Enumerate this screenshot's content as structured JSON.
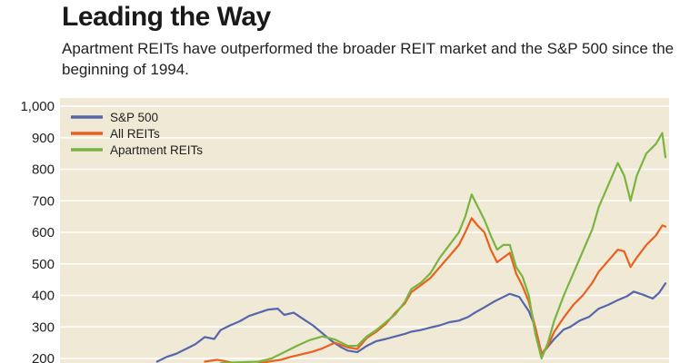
{
  "chart_data": {
    "type": "line",
    "title": "Leading the Way",
    "subtitle": "Apartment REITs have outperformed the broader REIT market and the S&P 500 since the beginning of 1994.",
    "ylim": [
      200,
      1000
    ],
    "yticks": [
      "1,000",
      "900",
      "800",
      "700",
      "600",
      "500",
      "400",
      "300",
      "200"
    ],
    "ytick_values": [
      1000,
      900,
      800,
      700,
      600,
      500,
      400,
      300,
      200
    ],
    "x": [
      1994,
      2013
    ],
    "grid": true,
    "legend_position": "top-left",
    "background_color": "#efe9d6",
    "grid_color": "#ffffff",
    "series": [
      {
        "name": "S&P 500",
        "color": "#5566aa",
        "points": [
          [
            1997.0,
            190
          ],
          [
            1997.3,
            205
          ],
          [
            1997.6,
            215
          ],
          [
            1997.9,
            230
          ],
          [
            1998.2,
            245
          ],
          [
            1998.5,
            268
          ],
          [
            1998.8,
            262
          ],
          [
            1999.0,
            290
          ],
          [
            1999.3,
            305
          ],
          [
            1999.6,
            318
          ],
          [
            1999.9,
            335
          ],
          [
            2000.2,
            345
          ],
          [
            2000.5,
            355
          ],
          [
            2000.8,
            358
          ],
          [
            2001.0,
            338
          ],
          [
            2001.3,
            345
          ],
          [
            2001.6,
            325
          ],
          [
            2001.9,
            305
          ],
          [
            2002.2,
            280
          ],
          [
            2002.5,
            255
          ],
          [
            2002.8,
            235
          ],
          [
            2003.0,
            225
          ],
          [
            2003.3,
            220
          ],
          [
            2003.6,
            240
          ],
          [
            2003.9,
            255
          ],
          [
            2004.2,
            262
          ],
          [
            2004.5,
            270
          ],
          [
            2004.8,
            278
          ],
          [
            2005.0,
            285
          ],
          [
            2005.3,
            290
          ],
          [
            2005.6,
            298
          ],
          [
            2005.9,
            305
          ],
          [
            2006.2,
            315
          ],
          [
            2006.5,
            320
          ],
          [
            2006.8,
            332
          ],
          [
            2007.0,
            345
          ],
          [
            2007.3,
            362
          ],
          [
            2007.6,
            380
          ],
          [
            2007.9,
            395
          ],
          [
            2008.1,
            405
          ],
          [
            2008.4,
            395
          ],
          [
            2008.7,
            350
          ],
          [
            2008.9,
            300
          ],
          [
            2009.1,
            215
          ],
          [
            2009.2,
            225
          ],
          [
            2009.5,
            262
          ],
          [
            2009.8,
            292
          ],
          [
            2010.0,
            300
          ],
          [
            2010.3,
            320
          ],
          [
            2010.6,
            332
          ],
          [
            2010.9,
            358
          ],
          [
            2011.2,
            370
          ],
          [
            2011.5,
            385
          ],
          [
            2011.8,
            398
          ],
          [
            2012.0,
            412
          ],
          [
            2012.3,
            402
          ],
          [
            2012.6,
            390
          ],
          [
            2012.8,
            408
          ],
          [
            2013.0,
            438
          ]
        ]
      },
      {
        "name": "All REITs",
        "color": "#e8611e",
        "points": [
          [
            1998.5,
            190
          ],
          [
            1998.9,
            196
          ],
          [
            1999.3,
            188
          ],
          [
            1999.7,
            182
          ],
          [
            2000.1,
            182
          ],
          [
            2000.5,
            190
          ],
          [
            2000.9,
            196
          ],
          [
            2001.2,
            205
          ],
          [
            2001.5,
            212
          ],
          [
            2001.9,
            222
          ],
          [
            2002.2,
            232
          ],
          [
            2002.6,
            250
          ],
          [
            2003.0,
            235
          ],
          [
            2003.3,
            230
          ],
          [
            2003.6,
            265
          ],
          [
            2003.9,
            285
          ],
          [
            2004.2,
            310
          ],
          [
            2004.5,
            345
          ],
          [
            2004.8,
            375
          ],
          [
            2005.0,
            410
          ],
          [
            2005.3,
            432
          ],
          [
            2005.6,
            455
          ],
          [
            2005.9,
            490
          ],
          [
            2006.2,
            525
          ],
          [
            2006.5,
            560
          ],
          [
            2006.7,
            600
          ],
          [
            2006.9,
            645
          ],
          [
            2007.1,
            620
          ],
          [
            2007.3,
            600
          ],
          [
            2007.5,
            545
          ],
          [
            2007.7,
            505
          ],
          [
            2007.9,
            520
          ],
          [
            2008.1,
            535
          ],
          [
            2008.3,
            470
          ],
          [
            2008.5,
            430
          ],
          [
            2008.7,
            380
          ],
          [
            2008.9,
            300
          ],
          [
            2009.1,
            215
          ],
          [
            2009.3,
            240
          ],
          [
            2009.5,
            285
          ],
          [
            2009.8,
            330
          ],
          [
            2010.1,
            370
          ],
          [
            2010.4,
            400
          ],
          [
            2010.7,
            440
          ],
          [
            2010.9,
            475
          ],
          [
            2011.2,
            510
          ],
          [
            2011.5,
            545
          ],
          [
            2011.7,
            540
          ],
          [
            2011.9,
            490
          ],
          [
            2012.1,
            520
          ],
          [
            2012.4,
            560
          ],
          [
            2012.7,
            590
          ],
          [
            2012.9,
            622
          ],
          [
            2013.0,
            618
          ]
        ]
      },
      {
        "name": "Apartment REITs",
        "color": "#7ab440",
        "points": [
          [
            1999.0,
            185
          ],
          [
            1999.6,
            188
          ],
          [
            2000.2,
            190
          ],
          [
            2000.6,
            200
          ],
          [
            2001.0,
            220
          ],
          [
            2001.4,
            240
          ],
          [
            2001.8,
            258
          ],
          [
            2002.2,
            270
          ],
          [
            2002.6,
            260
          ],
          [
            2003.0,
            240
          ],
          [
            2003.3,
            240
          ],
          [
            2003.6,
            270
          ],
          [
            2003.9,
            290
          ],
          [
            2004.2,
            315
          ],
          [
            2004.5,
            340
          ],
          [
            2004.8,
            380
          ],
          [
            2005.0,
            420
          ],
          [
            2005.3,
            440
          ],
          [
            2005.6,
            470
          ],
          [
            2005.9,
            520
          ],
          [
            2006.2,
            560
          ],
          [
            2006.5,
            600
          ],
          [
            2006.7,
            650
          ],
          [
            2006.9,
            720
          ],
          [
            2007.1,
            680
          ],
          [
            2007.3,
            640
          ],
          [
            2007.5,
            590
          ],
          [
            2007.7,
            545
          ],
          [
            2007.9,
            560
          ],
          [
            2008.1,
            560
          ],
          [
            2008.3,
            490
          ],
          [
            2008.5,
            460
          ],
          [
            2008.7,
            400
          ],
          [
            2008.9,
            280
          ],
          [
            2009.1,
            200
          ],
          [
            2009.3,
            250
          ],
          [
            2009.5,
            320
          ],
          [
            2009.8,
            400
          ],
          [
            2010.1,
            470
          ],
          [
            2010.4,
            540
          ],
          [
            2010.7,
            610
          ],
          [
            2010.9,
            680
          ],
          [
            2011.2,
            750
          ],
          [
            2011.5,
            820
          ],
          [
            2011.7,
            780
          ],
          [
            2011.9,
            700
          ],
          [
            2012.1,
            780
          ],
          [
            2012.4,
            850
          ],
          [
            2012.7,
            880
          ],
          [
            2012.9,
            915
          ],
          [
            2013.0,
            838
          ]
        ]
      }
    ]
  }
}
